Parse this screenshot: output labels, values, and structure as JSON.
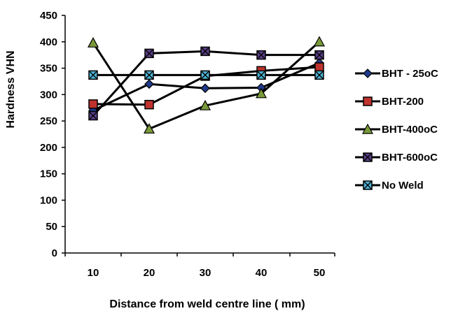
{
  "chart_data": {
    "type": "line",
    "title": "",
    "xlabel": "Distance from weld centre line ( mm)",
    "ylabel": "Hardness  VHN",
    "x": [
      10,
      20,
      30,
      40,
      50
    ],
    "x_ticks": [
      "10",
      "20",
      "30",
      "40",
      "50"
    ],
    "ylim": [
      0,
      450
    ],
    "y_ticks": [
      "0",
      "50",
      "100",
      "150",
      "200",
      "250",
      "300",
      "350",
      "400",
      "450"
    ],
    "grid": false,
    "legend_position": "right",
    "series": [
      {
        "name": "BHT - 25oC",
        "values": [
          270,
          320,
          312,
          313,
          360
        ],
        "color": "#000000",
        "marker": "diamond",
        "marker_color": "#1f3a8a"
      },
      {
        "name": "BHT-200",
        "values": [
          282,
          281,
          335,
          345,
          352
        ],
        "color": "#000000",
        "marker": "square",
        "marker_color": "#c0322e"
      },
      {
        "name": "BHT-400oC",
        "values": [
          398,
          235,
          279,
          302,
          400
        ],
        "color": "#000000",
        "marker": "triangle",
        "marker_color": "#7a9a3a"
      },
      {
        "name": "BHT-600oC",
        "values": [
          260,
          378,
          382,
          375,
          375
        ],
        "color": "#000000",
        "marker": "xsquare",
        "marker_color": "#5a3f86"
      },
      {
        "name": "No Weld",
        "values": [
          337,
          337,
          337,
          337,
          337
        ],
        "color": "#000000",
        "marker": "xsquare",
        "marker_color": "#4fb3d4"
      }
    ]
  }
}
